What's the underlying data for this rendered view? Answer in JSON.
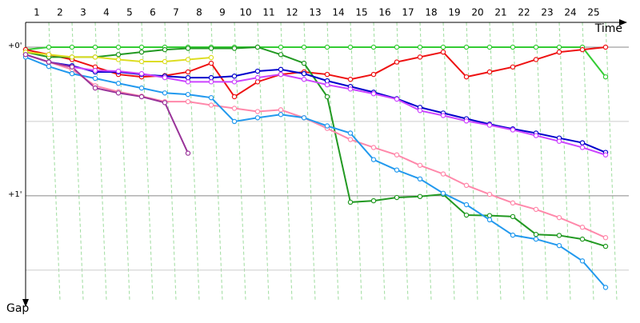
{
  "chart_data": {
    "type": "line",
    "x_label": "Time",
    "y_label": "Gap",
    "xlim": [
      0,
      26
    ],
    "ylim": [
      -10,
      102
    ],
    "xticks": [
      1,
      2,
      3,
      4,
      5,
      6,
      7,
      8,
      9,
      10,
      11,
      12,
      13,
      14,
      15,
      16,
      17,
      18,
      19,
      20,
      21,
      22,
      23,
      24,
      25
    ],
    "yticks": [
      {
        "value": 0,
        "label": "+0'"
      },
      {
        "value": 60,
        "label": "+1'"
      }
    ],
    "minor_yticks": [
      30,
      90
    ],
    "grid": true,
    "x": [
      0,
      1,
      2,
      3,
      4,
      5,
      6,
      7,
      8,
      9,
      10,
      11,
      12,
      13,
      14,
      15,
      16,
      17,
      18,
      19,
      20,
      21,
      22,
      23,
      24,
      25
    ],
    "series": [
      {
        "color": "#33cc33",
        "values": [
          1,
          0,
          0,
          0,
          0,
          0,
          0,
          0,
          0,
          0,
          0,
          0,
          0,
          0,
          0,
          0,
          0,
          0,
          0,
          0,
          0,
          0,
          0,
          0,
          0,
          12
        ]
      },
      {
        "color": "#ee1111",
        "values": [
          1,
          3,
          5,
          8,
          11,
          12,
          11.5,
          10,
          6.5,
          20,
          14,
          11,
          10,
          11,
          13,
          11,
          6,
          4,
          2,
          12,
          10,
          8,
          5,
          2,
          1,
          0
        ]
      },
      {
        "color": "#229922",
        "values": [
          2,
          4,
          4,
          4,
          3,
          2,
          1,
          0.5,
          0.5,
          0.5,
          0,
          3,
          6.5,
          20,
          62.6,
          62,
          60.7,
          60.3,
          59.4,
          67.8,
          68,
          68.4,
          75.6,
          76,
          77.5,
          80.4
        ]
      },
      {
        "color": "#0000cc",
        "values": [
          3,
          6,
          7.5,
          10,
          10,
          11,
          11.7,
          12.3,
          12.3,
          11.7,
          9.7,
          9,
          10.7,
          13.6,
          15.9,
          18.2,
          20.8,
          24.3,
          26.6,
          28.9,
          31.1,
          33,
          34.7,
          36.7,
          38.6,
          42.5
        ]
      },
      {
        "color": "#cc44ff",
        "values": [
          3,
          6,
          8,
          9.4,
          9.7,
          10.7,
          12.3,
          14,
          14,
          14,
          12.3,
          11,
          13,
          15.2,
          16.9,
          18.8,
          21,
          25.6,
          27.6,
          29.8,
          31.5,
          33.4,
          35.7,
          38,
          40.5,
          43.5
        ]
      },
      {
        "color": "#ff88aa",
        "values": [
          3,
          6,
          9,
          15.6,
          18,
          19.8,
          22,
          22,
          23.4,
          24.7,
          26,
          25.3,
          28.5,
          32.8,
          37.3,
          40.5,
          43.5,
          47.7,
          51.2,
          55.8,
          59.4,
          62.9,
          65.5,
          68.8,
          72.7,
          76.9
        ]
      },
      {
        "color": "#2299ee",
        "values": [
          4,
          7.8,
          10.7,
          12.6,
          14.6,
          16.5,
          18.5,
          19.1,
          20.4,
          30,
          28.5,
          27.2,
          28.5,
          31.8,
          34.7,
          45.4,
          49.6,
          53.2,
          59,
          63.6,
          69.7,
          75.9,
          77.5,
          80.1,
          86.3,
          97
        ]
      },
      {
        "color": "#dddd22",
        "values": [
          2,
          3,
          4,
          4,
          5,
          5.8,
          5.8,
          5,
          4.2,
          null,
          null,
          null,
          null,
          null,
          null,
          null,
          null,
          null,
          null,
          null,
          null,
          null,
          null,
          null,
          null,
          null
        ]
      },
      {
        "color": "#993399",
        "values": [
          3,
          6,
          8,
          16.5,
          18.5,
          20,
          22.4,
          42.8,
          null,
          null,
          null,
          null,
          null,
          null,
          null,
          null,
          null,
          null,
          null,
          null,
          null,
          null,
          null,
          null,
          null,
          null
        ]
      }
    ]
  }
}
